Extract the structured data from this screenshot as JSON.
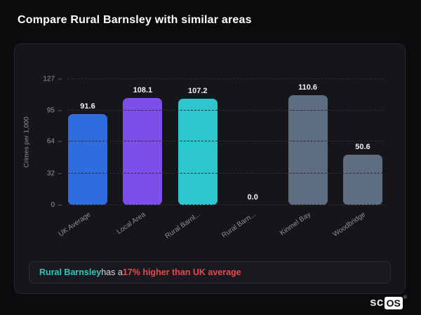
{
  "page": {
    "title": "Compare Rural Barnsley with similar areas"
  },
  "chart_data": {
    "type": "bar",
    "categories": [
      "UK Average",
      "Local Area",
      "Rural Barnl...",
      "Rural Barn...",
      "Kinmel Bay",
      "Woodbridge"
    ],
    "values": [
      91.6,
      108.1,
      107.2,
      0.0,
      110.6,
      50.6
    ],
    "value_labels": [
      "91.6",
      "108.1",
      "107.2",
      "0.0",
      "110.6",
      "50.6"
    ],
    "bar_colors": [
      "#2f6ce0",
      "#7d4fe9",
      "#2bc7cd",
      "#2bc7cd",
      "#5e6d80",
      "#5e6d80"
    ],
    "title": "",
    "xlabel": "",
    "ylabel": "Crimes per 1,000",
    "yticks": [
      127,
      95,
      64,
      32,
      0
    ],
    "ylim": [
      0,
      127
    ],
    "grid": "dashed-horizontal",
    "legend": "none"
  },
  "annotation": {
    "subject": "Rural Barnsley",
    "middle": " has a ",
    "highlight": "17% higher than UK average"
  },
  "watermark": {
    "prefix": "sc",
    "suffix": "OS",
    "reg": "®"
  },
  "colors": {
    "background": "#0b0b0e",
    "card": "#15151a",
    "accent_teal": "#2cc9b8",
    "accent_red": "#e8474f"
  }
}
